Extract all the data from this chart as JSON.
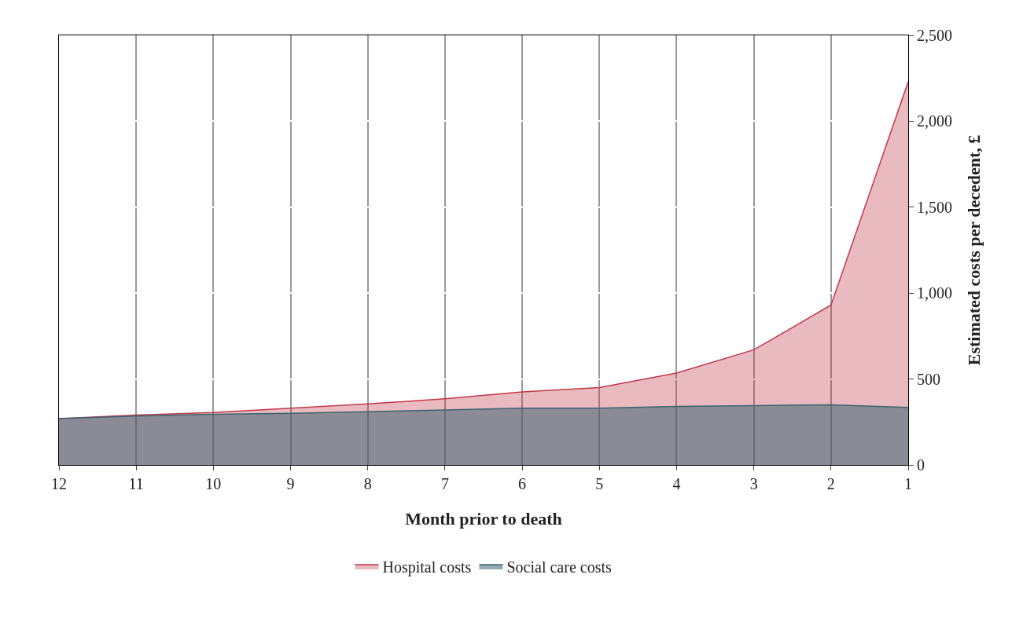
{
  "chart_data": {
    "type": "area",
    "xlabel": "Month prior to death",
    "ylabel": "Estimated costs per decedent, £",
    "categories": [
      "12",
      "11",
      "10",
      "9",
      "8",
      "7",
      "6",
      "5",
      "4",
      "3",
      "2",
      "1"
    ],
    "series": [
      {
        "name": "Hospital costs",
        "color": "#c0394b",
        "values": [
          270,
          290,
          305,
          330,
          355,
          385,
          425,
          450,
          535,
          670,
          930,
          2230
        ]
      },
      {
        "name": "Social care costs",
        "color": "#3d6470",
        "values": [
          270,
          285,
          295,
          300,
          310,
          320,
          330,
          330,
          340,
          345,
          350,
          335
        ]
      }
    ],
    "ylim": [
      0,
      2500
    ],
    "yticks": [
      {
        "value": 0,
        "label": "0"
      },
      {
        "value": 500,
        "label": "500"
      },
      {
        "value": 1000,
        "label": "1,000"
      },
      {
        "value": 1500,
        "label": "1,500"
      },
      {
        "value": 2000,
        "label": "2,000"
      },
      {
        "value": 2500,
        "label": "2,500"
      }
    ],
    "grid": true,
    "legend": "bottom",
    "marker": "none"
  }
}
